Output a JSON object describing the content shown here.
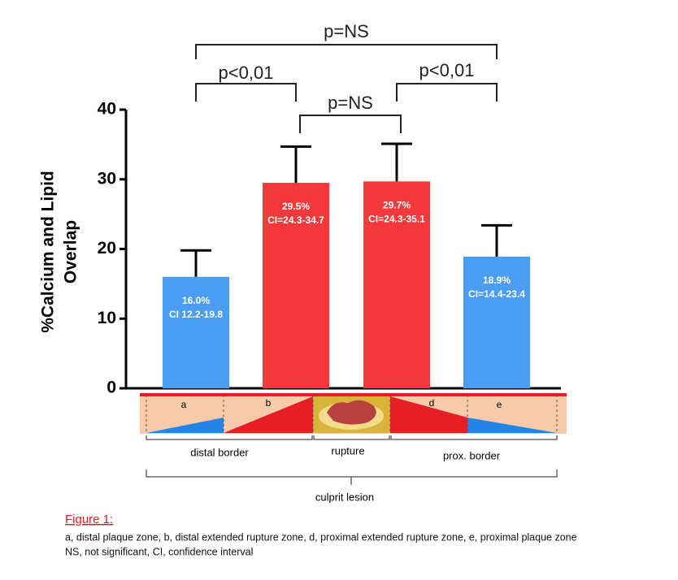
{
  "chart_data": {
    "type": "bar",
    "ylabel_lines": [
      "%Calcium and Lipid",
      "Overlap"
    ],
    "categories": [
      null,
      null,
      null,
      null
    ],
    "series": [
      {
        "values": [
          16.0,
          29.5,
          29.7,
          18.9
        ],
        "value_labels": [
          "16.0%",
          "29.5%",
          "29.7%",
          "18.9%"
        ]
      }
    ],
    "colors": [
      "#4a9df2",
      "#f4393c",
      "#f4393c",
      "#4a9df2"
    ],
    "ci_labels": [
      "CI 12.2-19.8",
      "CI=24.3-34.7",
      "CI=24.3-35.1",
      "CI=14.4-23.4"
    ],
    "ci_upper": [
      19.8,
      34.7,
      35.1,
      23.4
    ],
    "ylim": [
      0,
      40
    ],
    "yticks": [
      0,
      10,
      20,
      30,
      40
    ],
    "annotations": [
      {
        "text": "p=NS",
        "from": 0,
        "to": 3
      },
      {
        "text": "p<0,01",
        "from": 0,
        "to": 1
      },
      {
        "text": "p<0,01",
        "from": 2,
        "to": 3
      },
      {
        "text": "p=NS",
        "from": 1,
        "to": 2
      }
    ]
  },
  "diagram": {
    "zones": [
      "a",
      "b",
      "d",
      "e"
    ],
    "regions": [
      "distal border",
      "rupture",
      "prox. border"
    ],
    "lesion": "culprit lesion"
  },
  "caption": {
    "title": "Figure 1:",
    "lines": [
      "a, distal plaque zone, b, distal extended rupture zone, d, proximal extended rupture zone, e, proximal plaque zone",
      "NS, not significant, CI, confidence interval"
    ]
  }
}
